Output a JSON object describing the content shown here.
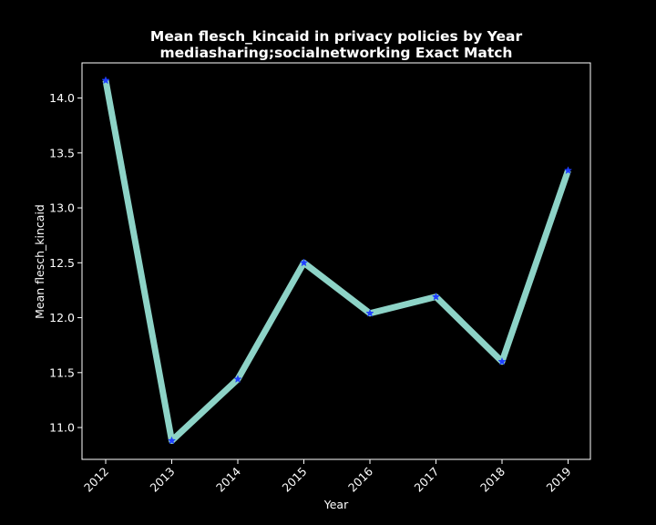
{
  "chart_data": {
    "type": "line",
    "title": "Mean flesch_kincaid in privacy policies by Year",
    "subtitle": "mediasharing;socialnetworking Exact Match",
    "xlabel": "Year",
    "ylabel": "Mean flesch_kincaid",
    "x": [
      "2012",
      "2013",
      "2014",
      "2015",
      "2016",
      "2017",
      "2018",
      "2019"
    ],
    "series": [
      {
        "values": [
          14.16,
          10.88,
          11.44,
          12.5,
          12.04,
          12.19,
          11.6,
          13.34
        ]
      }
    ],
    "ylim": [
      10.71,
      14.32
    ],
    "yticks": [
      "11.0",
      "11.5",
      "12.0",
      "12.5",
      "13.0",
      "13.5",
      "14.0"
    ],
    "grid": false,
    "legend": "none",
    "colors": {
      "background": "#000000",
      "line": "#8dd3c7",
      "marker": "#1f3fff",
      "axes": "#ffffff",
      "text": "#ffffff"
    },
    "marker_icon": "star-marker-icon"
  }
}
